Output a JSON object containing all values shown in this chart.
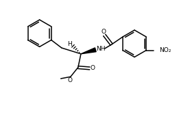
{
  "line_color": "#000000",
  "bg_color": "#ffffff",
  "line_width": 1.1,
  "fig_width": 2.77,
  "fig_height": 1.74,
  "dpi": 100,
  "xlim": [
    0,
    10
  ],
  "ylim": [
    0,
    6.3
  ]
}
